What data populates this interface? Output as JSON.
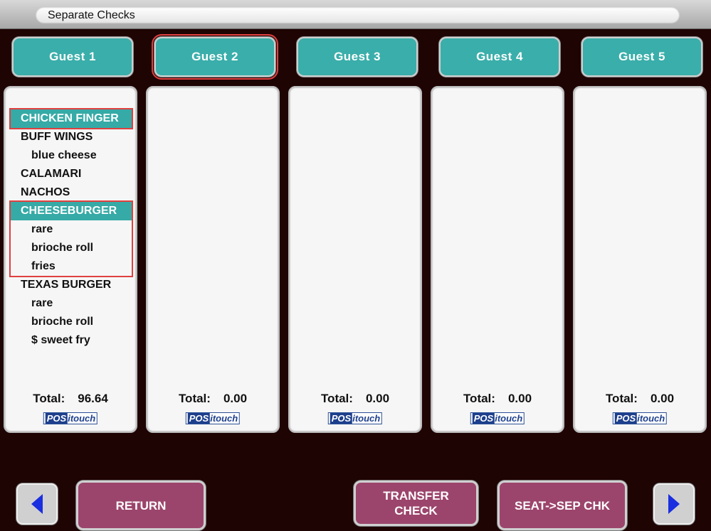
{
  "title": "Separate Checks",
  "guests": [
    {
      "label": "Guest  1",
      "total_label": "Total:",
      "total": "96.64",
      "selected": false,
      "items": [
        {
          "text": "CHICKEN FINGER",
          "type": "item",
          "highlighted": true
        },
        {
          "text": "BUFF WINGS",
          "type": "item"
        },
        {
          "text": "blue cheese",
          "type": "mod"
        },
        {
          "text": "CALAMARI",
          "type": "item"
        },
        {
          "text": "NACHOS",
          "type": "item"
        },
        {
          "text": "CHEESEBURGER",
          "type": "item",
          "highlighted": true
        },
        {
          "text": "rare",
          "type": "mod"
        },
        {
          "text": "brioche roll",
          "type": "mod"
        },
        {
          "text": "fries",
          "type": "mod"
        },
        {
          "text": "TEXAS BURGER",
          "type": "item"
        },
        {
          "text": "rare",
          "type": "mod"
        },
        {
          "text": "brioche roll",
          "type": "mod"
        },
        {
          "text": "$ sweet fry",
          "type": "mod"
        }
      ]
    },
    {
      "label": "Guest  2",
      "total_label": "Total:",
      "total": "0.00",
      "selected": true,
      "items": []
    },
    {
      "label": "Guest  3",
      "total_label": "Total:",
      "total": "0.00",
      "selected": false,
      "items": []
    },
    {
      "label": "Guest  4",
      "total_label": "Total:",
      "total": "0.00",
      "selected": false,
      "items": []
    },
    {
      "label": "Guest  5",
      "total_label": "Total:",
      "total": "0.00",
      "selected": false,
      "items": []
    }
  ],
  "logo": {
    "part1": "POS",
    "part2": "itouch"
  },
  "buttons": {
    "return": "RETURN",
    "transfer": "TRANSFER CHECK",
    "seat": "SEAT->SEP CHK"
  },
  "colors": {
    "guest_button": "#3aaeaa",
    "action_button": "#9c456c",
    "selection_outline": "#e04040",
    "background": "#1f0404"
  }
}
